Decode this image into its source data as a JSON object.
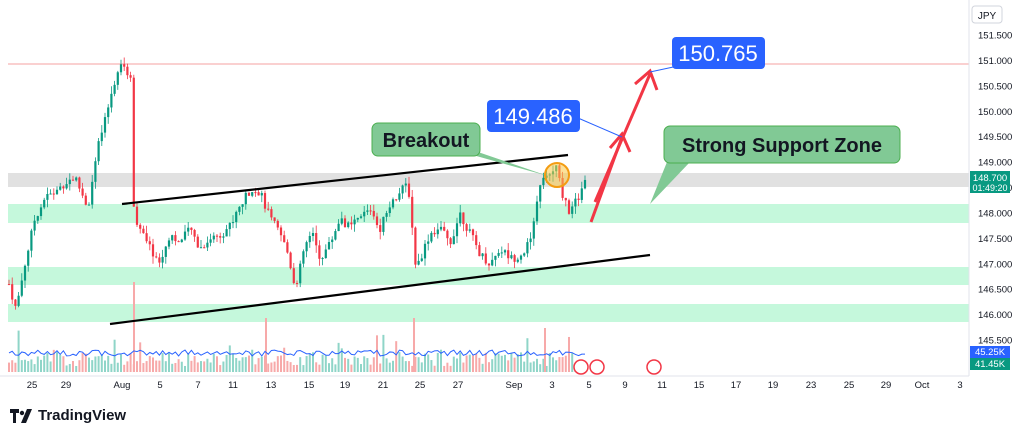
{
  "chart_data": {
    "type": "candlestick",
    "currency": "JPY",
    "y_ticks": [
      "151.500",
      "151.000",
      "150.500",
      "150.000",
      "149.500",
      "149.000",
      "148.500",
      "148.000",
      "147.500",
      "147.000",
      "146.500",
      "146.000",
      "145.500"
    ],
    "x_ticks": [
      "25",
      "29",
      "Aug",
      "5",
      "7",
      "11",
      "13",
      "15",
      "19",
      "21",
      "25",
      "27",
      "Sep",
      "3",
      "5",
      "9",
      "11",
      "15",
      "17",
      "19",
      "23",
      "25",
      "29",
      "Oct",
      "3"
    ],
    "ylim": [
      145.3,
      151.8
    ],
    "last_price": "148.700",
    "countdown": "01:49:20",
    "volume_labels": [
      "45.25K",
      "41.45K"
    ],
    "annotations": {
      "breakout": "Breakout",
      "support_zone": "Strong Support Zone",
      "target1": "149.486",
      "target2": "150.765"
    },
    "colors": {
      "up": "#089981",
      "down": "#f23645",
      "zone": "#b2f5d0",
      "label_blue": "#2962ff",
      "label_green": "#81c995"
    }
  },
  "brand": {
    "name": "TradingView"
  }
}
